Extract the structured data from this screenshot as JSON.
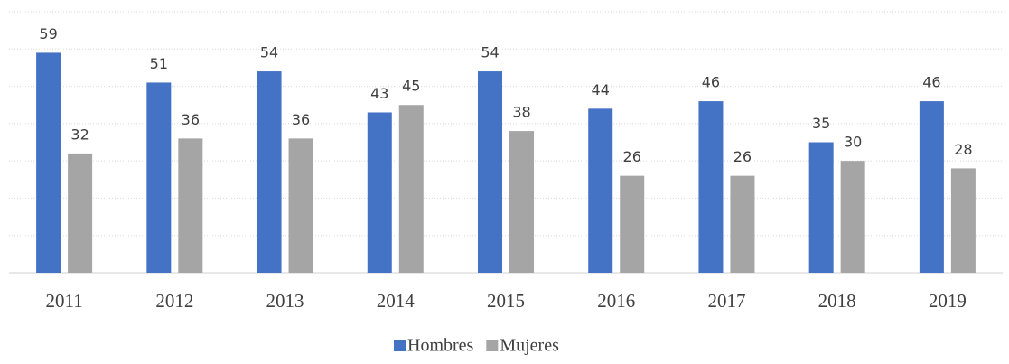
{
  "chart_data": {
    "type": "bar",
    "categories": [
      "2011",
      "2012",
      "2013",
      "2014",
      "2015",
      "2016",
      "2017",
      "2018",
      "2019"
    ],
    "series": [
      {
        "name": "Hombres",
        "color": "#4472c4",
        "values": [
          59,
          51,
          54,
          43,
          54,
          44,
          46,
          35,
          46
        ]
      },
      {
        "name": "Mujeres",
        "color": "#a5a5a5",
        "values": [
          32,
          36,
          36,
          45,
          38,
          26,
          26,
          30,
          28
        ]
      }
    ],
    "ylim": [
      0,
      70
    ],
    "yticks": [
      0,
      10,
      20,
      30,
      40,
      50,
      60,
      70
    ],
    "grid": true,
    "legend": "bottom"
  }
}
